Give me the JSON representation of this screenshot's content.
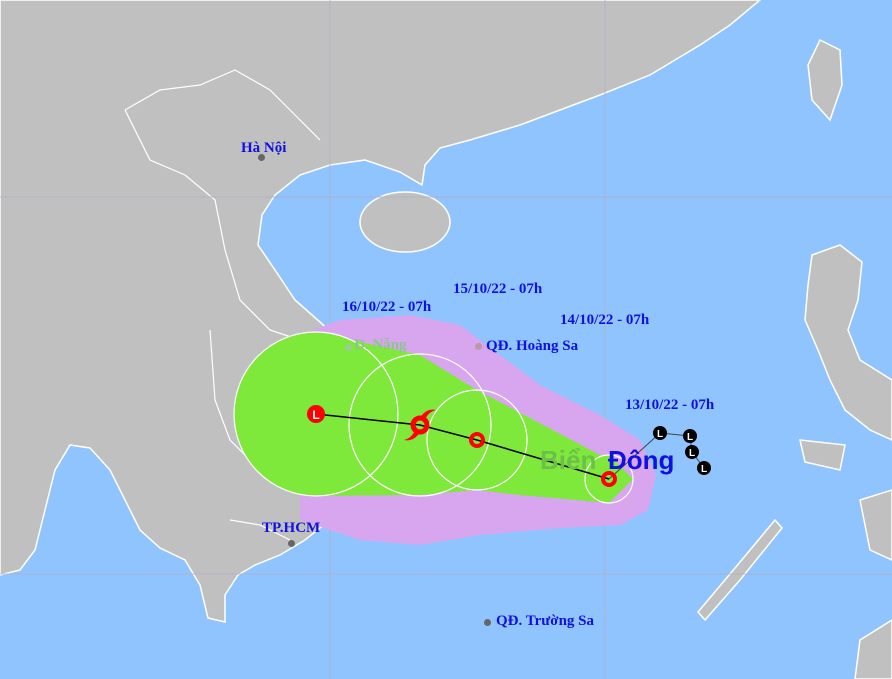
{
  "map": {
    "colors": {
      "sea": "#90c4fe",
      "land": "#c0c0c0",
      "wind_zone": "#7fe93b",
      "risk_zone": "#d8a6ef",
      "track_marker": "#ff0000",
      "label": "#1010e0"
    },
    "places": [
      {
        "name": "Hà Nội"
      },
      {
        "name": "Đ. Nẵng"
      },
      {
        "name": "QĐ. Hoàng Sa"
      },
      {
        "name": "TP.HCM"
      },
      {
        "name": "QĐ. Trường Sa"
      }
    ],
    "sea_label": {
      "part1": "Biển",
      "part2": "Đông"
    },
    "forecast_points": [
      {
        "time": "13/10/22 - 07h",
        "symbol": "tropical-depression-icon"
      },
      {
        "time": "14/10/22 - 07h",
        "symbol": "tropical-depression-icon"
      },
      {
        "time": "15/10/22 - 07h",
        "symbol": "tropical-storm-icon"
      },
      {
        "time": "16/10/22 - 07h",
        "symbol": "low-pressure-icon",
        "marker_text": "L"
      }
    ],
    "past_marker_text": "L"
  }
}
